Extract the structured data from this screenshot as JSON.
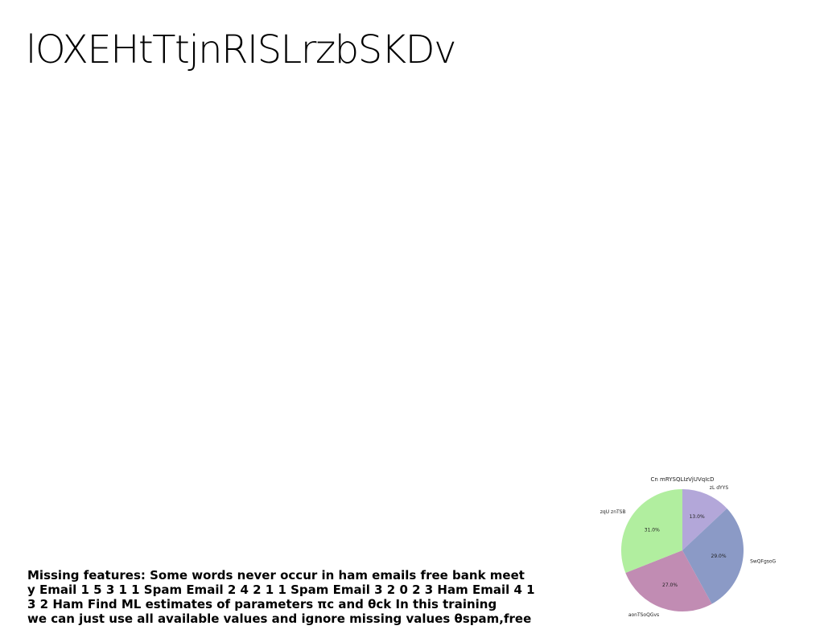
{
  "slide": {
    "title": "lOXEHtTtjnRISLrzbSKDv",
    "body_lines": [
      "Missing features: Some words never occur in ham emails free bank meet",
      "y Email 1 5 3 1 1 Spam Email 2 4 2 1 1 Spam Email 3 2 0 2 3 Ham Email 4 1",
      "3 2 Ham Find ML estimates of parameters πc and θck In this training",
      "we can just use all available values and ignore missing values θspam,free"
    ]
  },
  "chart_data": {
    "type": "pie",
    "title": "Cn mRYSQLIzVjUVqIcD",
    "slices": [
      {
        "label": "zL dYYS",
        "value": 13.0,
        "pct_label": "13.0%",
        "color": "#b3a7d9"
      },
      {
        "label": "SwQFgsoG",
        "value": 29.0,
        "pct_label": "29.0%",
        "color": "#8b9ac6"
      },
      {
        "label": "aonTSoQGvs",
        "value": 27.0,
        "pct_label": "27.0%",
        "color": "#c18cb3"
      },
      {
        "label": "zqU znTSB",
        "value": 31.0,
        "pct_label": "31.0%",
        "color": "#b1ee9f"
      }
    ],
    "start_angle": "top",
    "direction": "clockwise"
  }
}
